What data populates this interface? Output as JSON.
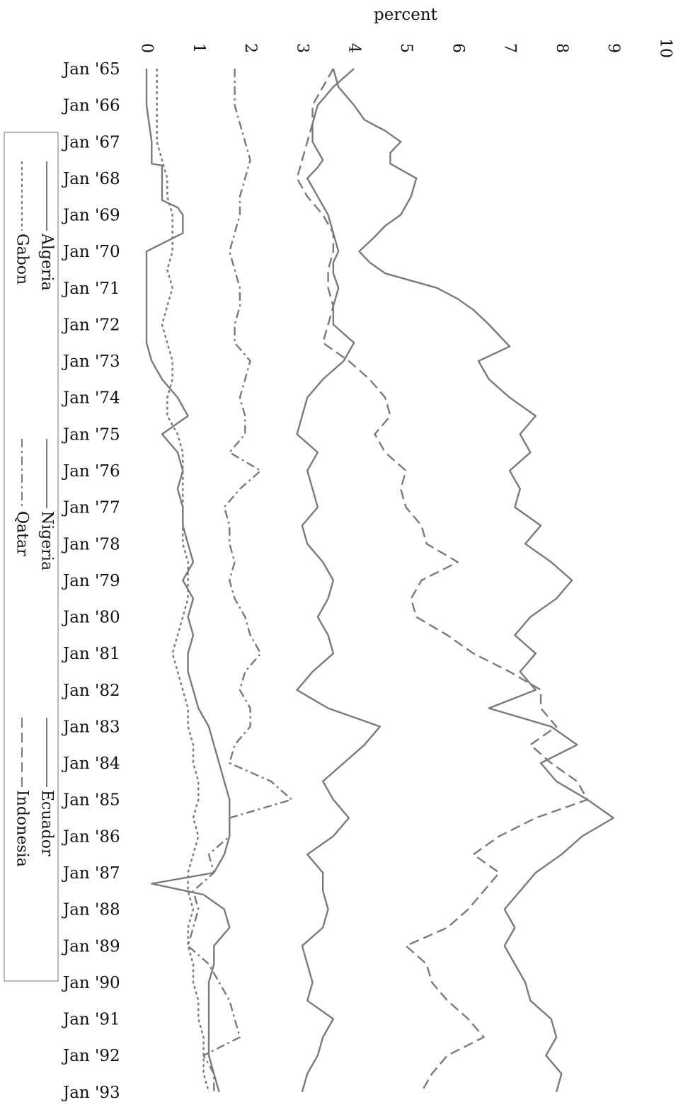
{
  "chart_data": {
    "type": "line",
    "orientation": "rotated: time runs top-to-bottom, percent increases left-to-right",
    "title": "",
    "xlabel": "",
    "ylabel": "percent",
    "ylim": [
      0,
      10
    ],
    "yticks": [
      "0",
      "1",
      "2",
      "3",
      "4",
      "5",
      "6",
      "7",
      "8",
      "9",
      "10"
    ],
    "x_ticks": [
      "Jan '65",
      "Jan '66",
      "Jan '67",
      "Jan '68",
      "Jan '69",
      "Jan '70",
      "Jan '71",
      "Jan '72",
      "Jan '73",
      "Jan '74",
      "Jan '75",
      "Jan '76",
      "Jan '77",
      "Jan '78",
      "Jan '79",
      "Jan '80",
      "Jan '81",
      "Jan '82",
      "Jan '83",
      "Jan '84",
      "Jan '85",
      "Jan '86",
      "Jan '87",
      "Jan '88",
      "Jan '89",
      "Jan '90",
      "Jan '91",
      "Jan '92",
      "Jan '93"
    ],
    "xlim": [
      1965.0,
      1993.1
    ],
    "grid": false,
    "legend_position": "left",
    "series": [
      {
        "name": "Algeria",
        "dash": "solid",
        "x": [
          1965,
          1965.5,
          1966,
          1966.5,
          1967,
          1967.5,
          1967.7,
          1968,
          1968.5,
          1969,
          1969.5,
          1970,
          1970.3,
          1970.6,
          1971,
          1971.5,
          1972,
          1972.5,
          1973,
          1973.5,
          1974,
          1974.5,
          1975,
          1975.5,
          1976,
          1976.5,
          1977,
          1977.5,
          1978,
          1978.5,
          1979,
          1979.5,
          1980,
          1980.5,
          1981,
          1981.5,
          1982,
          1982.5,
          1983,
          1983.5,
          1984,
          1984.5,
          1985,
          1985.5,
          1986,
          1986.5,
          1987,
          1987.5,
          1988,
          1988.5,
          1989,
          1989.5,
          1990,
          1990.5,
          1991,
          1991.5,
          1992,
          1992.5,
          1993
        ],
        "values": [
          4.0,
          3.6,
          3.3,
          3.2,
          3.2,
          3.4,
          3.3,
          3.1,
          3.3,
          3.5,
          3.6,
          3.7,
          3.6,
          3.6,
          3.7,
          3.6,
          3.6,
          4.0,
          3.8,
          3.4,
          3.1,
          3.0,
          2.9,
          3.3,
          3.1,
          3.2,
          3.3,
          3.0,
          3.1,
          3.4,
          3.6,
          3.5,
          3.3,
          3.5,
          3.6,
          3.2,
          2.9,
          3.5,
          4.5,
          4.2,
          3.8,
          3.4,
          3.6,
          3.9,
          3.6,
          3.1,
          3.4,
          3.4,
          3.5,
          3.4,
          3.0,
          3.1,
          3.2,
          3.1,
          3.6,
          3.4,
          3.3,
          3.1,
          3.0
        ]
      },
      {
        "name": "Nigeria",
        "dash": "solid",
        "x": [
          1965,
          1966,
          1967,
          1967.6,
          1967.65,
          1968,
          1968.6,
          1968.8,
          1969,
          1969.5,
          1970,
          1970.5,
          1971,
          1971.3,
          1971.4,
          1972,
          1972.3,
          1972.5,
          1973,
          1973.5,
          1974,
          1974.5,
          1975,
          1975.5,
          1976,
          1976.5,
          1977,
          1977.5,
          1978,
          1978.5,
          1979,
          1979.5,
          1980,
          1980.5,
          1981,
          1981.5,
          1982,
          1982.5,
          1983,
          1983.5,
          1984,
          1984.5,
          1985,
          1985.5,
          1986,
          1986.5,
          1987,
          1987.3,
          1987.6,
          1988,
          1988.5,
          1989,
          1989.5,
          1990,
          1990.5,
          1991,
          1991.5,
          1992,
          1992.5,
          1993
        ],
        "values": [
          0.0,
          0.0,
          0.1,
          0.1,
          0.3,
          0.3,
          0.3,
          0.6,
          0.7,
          0.7,
          0.0,
          0.0,
          0.0,
          0.0,
          0.0,
          0.0,
          0.0,
          0.0,
          0.1,
          0.3,
          0.6,
          0.8,
          0.3,
          0.6,
          0.7,
          0.6,
          0.7,
          0.7,
          0.8,
          0.9,
          0.7,
          0.9,
          0.8,
          0.9,
          0.8,
          0.8,
          0.9,
          1.0,
          1.2,
          1.3,
          1.4,
          1.5,
          1.6,
          1.6,
          1.6,
          1.5,
          1.3,
          0.1,
          1.1,
          1.5,
          1.6,
          1.3,
          1.3,
          1.2,
          1.2,
          1.2,
          1.2,
          1.2,
          1.3,
          1.4
        ]
      },
      {
        "name": "Ecuador",
        "dash": "solid",
        "x": [
          1965,
          1965.5,
          1966,
          1966.4,
          1966.7,
          1967,
          1967.3,
          1967.6,
          1968,
          1968.5,
          1969,
          1969.3,
          1969.6,
          1970,
          1970.3,
          1970.6,
          1971,
          1971.3,
          1971.6,
          1972,
          1972.3,
          1972.6,
          1973,
          1973.5,
          1974,
          1974.5,
          1975,
          1975.5,
          1976,
          1976.5,
          1977,
          1977.5,
          1978,
          1978.5,
          1979,
          1979.5,
          1980,
          1980.5,
          1981,
          1981.5,
          1982,
          1982.5,
          1983,
          1983.5,
          1984,
          1984.5,
          1985,
          1985.5,
          1986,
          1986.5,
          1987,
          1987.5,
          1988,
          1988.5,
          1989,
          1989.5,
          1990,
          1990.5,
          1991,
          1991.5,
          1992,
          1992.5,
          1993
        ],
        "values": [
          3.6,
          3.7,
          4.0,
          4.2,
          4.6,
          4.9,
          4.7,
          4.7,
          5.2,
          5.1,
          4.9,
          4.6,
          4.4,
          4.1,
          4.3,
          4.6,
          5.6,
          6.0,
          6.3,
          6.6,
          6.8,
          7.0,
          6.4,
          6.6,
          7.0,
          7.5,
          7.2,
          7.4,
          7.0,
          7.2,
          7.1,
          7.6,
          7.3,
          7.8,
          8.2,
          7.9,
          7.4,
          7.1,
          7.5,
          7.2,
          7.5,
          6.6,
          7.8,
          8.3,
          7.6,
          7.9,
          8.5,
          9.0,
          8.4,
          8.0,
          7.5,
          7.2,
          6.9,
          7.1,
          6.9,
          7.1,
          7.3,
          7.4,
          7.8,
          7.9,
          7.7,
          8.0,
          7.9
        ]
      },
      {
        "name": "Gabon",
        "dash": "dotted",
        "x": [
          1965,
          1966,
          1967,
          1967.5,
          1968,
          1968.5,
          1969,
          1969.5,
          1970,
          1970.5,
          1971,
          1971.5,
          1972,
          1972.5,
          1973,
          1973.5,
          1974,
          1974.5,
          1975,
          1975.5,
          1976,
          1976.5,
          1977,
          1977.5,
          1978,
          1978.5,
          1979,
          1979.5,
          1980,
          1980.5,
          1981,
          1981.5,
          1982,
          1982.5,
          1983,
          1983.5,
          1984,
          1984.5,
          1985,
          1985.5,
          1986,
          1986.5,
          1987,
          1987.5,
          1988,
          1988.5,
          1989,
          1989.5,
          1990,
          1990.5,
          1991,
          1991.5,
          1992,
          1992.5,
          1993
        ],
        "values": [
          0.2,
          0.2,
          0.2,
          0.3,
          0.4,
          0.4,
          0.5,
          0.5,
          0.5,
          0.4,
          0.5,
          0.4,
          0.3,
          0.4,
          0.5,
          0.5,
          0.4,
          0.4,
          0.6,
          0.7,
          0.7,
          0.7,
          0.7,
          0.7,
          0.7,
          0.8,
          0.8,
          0.8,
          0.7,
          0.6,
          0.5,
          0.6,
          0.7,
          0.8,
          0.8,
          0.9,
          0.9,
          1.0,
          1.0,
          0.9,
          1.0,
          0.9,
          0.8,
          0.8,
          0.9,
          0.8,
          0.8,
          0.9,
          0.9,
          1.0,
          1.0,
          1.1,
          1.1,
          1.1,
          1.2
        ]
      },
      {
        "name": "Qatar",
        "dash": "dash-dot",
        "x": [
          1965,
          1966,
          1967,
          1967.5,
          1968,
          1968.5,
          1969,
          1969.5,
          1970,
          1970.5,
          1971,
          1971.5,
          1972,
          1972.5,
          1973,
          1973.5,
          1974,
          1974.5,
          1975,
          1975.5,
          1976,
          1976.5,
          1977,
          1977.5,
          1978,
          1978.5,
          1979,
          1979.5,
          1980,
          1980.5,
          1981,
          1981.5,
          1982,
          1982.5,
          1983,
          1983.5,
          1984,
          1984.5,
          1985,
          1985.5,
          1986,
          1986.5,
          1987,
          1987.5,
          1988,
          1988.5,
          1989,
          1989.5,
          1990,
          1990.5,
          1991,
          1991.5,
          1992,
          1992.5,
          1993
        ],
        "values": [
          1.7,
          1.7,
          1.9,
          2.0,
          1.9,
          1.8,
          1.8,
          1.7,
          1.6,
          1.7,
          1.8,
          1.8,
          1.7,
          1.7,
          2.0,
          1.9,
          1.8,
          1.9,
          1.9,
          1.6,
          2.2,
          1.8,
          1.5,
          1.6,
          1.6,
          1.7,
          1.6,
          1.7,
          1.9,
          2.0,
          2.2,
          1.9,
          1.8,
          2.0,
          2.0,
          1.7,
          1.6,
          2.4,
          2.8,
          1.6,
          1.6,
          1.2,
          1.3,
          0.9,
          1.0,
          0.9,
          0.8,
          1.2,
          1.4,
          1.6,
          1.7,
          1.8,
          1.1,
          1.3,
          1.3
        ]
      },
      {
        "name": "Indonesia",
        "dash": "dashed",
        "x": [
          1965,
          1965.5,
          1966,
          1966.5,
          1967,
          1967.5,
          1968,
          1968.5,
          1969,
          1969.5,
          1970,
          1970.5,
          1971,
          1971.5,
          1972,
          1972.5,
          1973,
          1973.5,
          1974,
          1974.5,
          1975,
          1975.5,
          1976,
          1976.5,
          1977,
          1977.5,
          1978,
          1978.5,
          1979,
          1979.5,
          1980,
          1980.5,
          1981,
          1981.5,
          1982,
          1982.5,
          1983,
          1983.5,
          1984,
          1984.5,
          1985,
          1985.5,
          1986,
          1986.5,
          1987,
          1987.5,
          1988,
          1988.5,
          1989,
          1989.5,
          1990,
          1990.5,
          1991,
          1991.5,
          1992,
          1992.5,
          1993
        ],
        "values": [
          3.6,
          3.4,
          3.2,
          3.2,
          3.1,
          3.0,
          2.9,
          3.1,
          3.4,
          3.6,
          3.6,
          3.5,
          3.5,
          3.6,
          3.5,
          3.4,
          3.9,
          4.3,
          4.6,
          4.7,
          4.4,
          4.6,
          5.0,
          4.9,
          5.0,
          5.3,
          5.4,
          6.0,
          5.3,
          5.1,
          5.2,
          5.8,
          6.3,
          7.0,
          7.6,
          7.6,
          7.9,
          7.4,
          7.8,
          8.3,
          8.5,
          7.5,
          6.8,
          6.3,
          6.8,
          6.5,
          6.2,
          5.8,
          5.0,
          5.4,
          5.5,
          5.8,
          6.2,
          6.5,
          5.8,
          5.5,
          5.3
        ]
      }
    ]
  }
}
